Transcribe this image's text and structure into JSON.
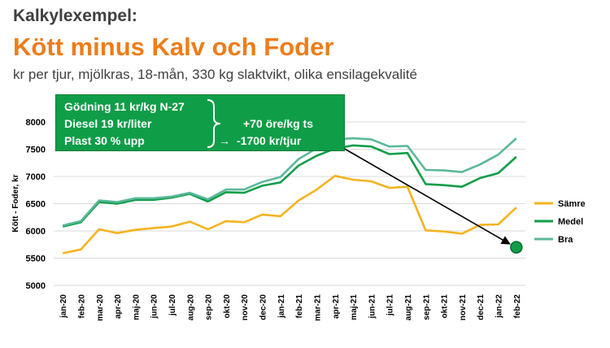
{
  "kicker": "Kalkylexempel:",
  "title": "Kött minus Kalv och Foder",
  "subtitle": "kr per tjur, mjölkras, 18-mån, 330 kg slaktvikt, olika ensilagekvalité",
  "callout": {
    "line1": "Gödning 11 kr/kg N-27",
    "line2": "Diesel 19 kr/liter",
    "line3": "Plast 30 % upp",
    "result1": "+70 öre/kg ts",
    "result2_arrow": "→",
    "result2": "-1700 kr/tjur"
  },
  "colors": {
    "Sämre": "#f5b31f",
    "Medel": "#0f9d48",
    "Bra": "#5bb89a",
    "arrow": "#000000",
    "marker": "#0f9d48"
  },
  "chart_data": {
    "type": "line",
    "title": "",
    "xlabel": "",
    "ylabel": "Kött - Foder, kr",
    "ylim": [
      5000,
      8000
    ],
    "yticks": [
      5000,
      5500,
      6000,
      6500,
      7000,
      7500,
      8000
    ],
    "grid": true,
    "legend": "right",
    "categories": [
      "jan-20",
      "feb-20",
      "mar-20",
      "apr-20",
      "maj-20",
      "jun-20",
      "jul-20",
      "aug-20",
      "sep-20",
      "okt-20",
      "nov-20",
      "dec-20",
      "jan-21",
      "feb-21",
      "mar-21",
      "apr-21",
      "maj-21",
      "jun-21",
      "jul-21",
      "aug-21",
      "sep-21",
      "okt-21",
      "nov-21",
      "dec-21",
      "jan-22",
      "feb-22"
    ],
    "xtick_labels": [
      "jan-20",
      "feb-20",
      "mar-20",
      "apr-20",
      "maj-20",
      "jun-20",
      "jul-20",
      "aug-20",
      "sep-20",
      "okt-20",
      "nov-20",
      "dec-20",
      "jan-21",
      "feb-21",
      "mar-21",
      "apr-21",
      "maj-21",
      "jun-21",
      "jul-21",
      "aug-21",
      "sep-21",
      "okt-21",
      "nov-21",
      "dec-21",
      "jan-22",
      "feb-22"
    ],
    "series": [
      {
        "name": "Sämre",
        "values": [
          5590,
          5660,
          6030,
          5960,
          6020,
          6050,
          6080,
          6170,
          6030,
          6180,
          6160,
          6300,
          6270,
          6560,
          6760,
          7010,
          6940,
          6910,
          6790,
          6810,
          6010,
          5990,
          5950,
          6110,
          6120,
          6430
        ]
      },
      {
        "name": "Medel",
        "values": [
          6080,
          6160,
          6530,
          6500,
          6570,
          6570,
          6610,
          6680,
          6540,
          6710,
          6700,
          6830,
          6890,
          7200,
          7380,
          7510,
          7570,
          7550,
          7410,
          7430,
          6860,
          6840,
          6810,
          6970,
          7060,
          7360
        ]
      },
      {
        "name": "Bra",
        "values": [
          6100,
          6180,
          6560,
          6530,
          6600,
          6600,
          6630,
          6700,
          6580,
          6760,
          6760,
          6900,
          6990,
          7320,
          7520,
          7680,
          7700,
          7680,
          7550,
          7560,
          7120,
          7110,
          7080,
          7220,
          7400,
          7700
        ]
      }
    ],
    "annotations": [
      {
        "type": "arrow",
        "from": {
          "x": "apr-21",
          "y": 7610
        },
        "to": {
          "x": "feb-22",
          "y": 5700
        }
      },
      {
        "type": "marker",
        "x": "feb-22",
        "y": 5700
      }
    ]
  }
}
